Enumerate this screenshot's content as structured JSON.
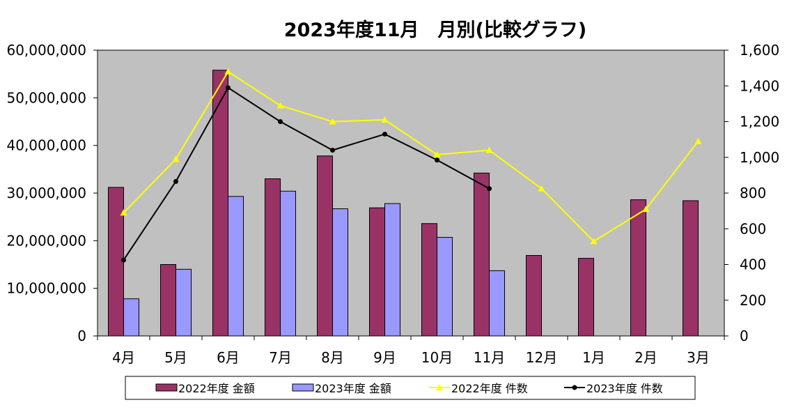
{
  "chart_data": {
    "type": "bar",
    "title": "2023年度11月　月別(比較グラフ)",
    "categories": [
      "4月",
      "5月",
      "6月",
      "7月",
      "8月",
      "9月",
      "10月",
      "11月",
      "12月",
      "1月",
      "2月",
      "3月"
    ],
    "y_left": {
      "min": 0,
      "max": 60000000,
      "step": 10000000,
      "tick_labels": [
        "0",
        "10,000,000",
        "20,000,000",
        "30,000,000",
        "40,000,000",
        "50,000,000",
        "60,000,000"
      ]
    },
    "y_right": {
      "min": 0,
      "max": 1600,
      "step": 200,
      "tick_labels": [
        "0",
        "200",
        "400",
        "600",
        "800",
        "1,000",
        "1,200",
        "1,400",
        "1,600"
      ]
    },
    "series": [
      {
        "name": "2022年度 金額",
        "kind": "bar",
        "axis": "left",
        "color": "#993366",
        "values": [
          31200000,
          15000000,
          55800000,
          33000000,
          37800000,
          26900000,
          23600000,
          34200000,
          16900000,
          16300000,
          28600000,
          28400000
        ]
      },
      {
        "name": "2023年度 金額",
        "kind": "bar",
        "axis": "left",
        "color": "#9999ff",
        "values": [
          7800000,
          14000000,
          29300000,
          30400000,
          26700000,
          27800000,
          20700000,
          13700000,
          null,
          null,
          null,
          null
        ]
      },
      {
        "name": "2022年度 件数",
        "kind": "line",
        "axis": "right",
        "color": "#ffff00",
        "values": [
          690,
          990,
          1480,
          1290,
          1200,
          1210,
          1015,
          1040,
          825,
          530,
          710,
          1090
        ]
      },
      {
        "name": "2023年度 件数",
        "kind": "line",
        "axis": "right",
        "color": "#000000",
        "values": [
          425,
          865,
          1390,
          1200,
          1040,
          1130,
          985,
          825,
          null,
          null,
          null,
          null
        ]
      }
    ],
    "plot_background": "#c0c0c0",
    "grid": false,
    "legend_position": "bottom"
  }
}
